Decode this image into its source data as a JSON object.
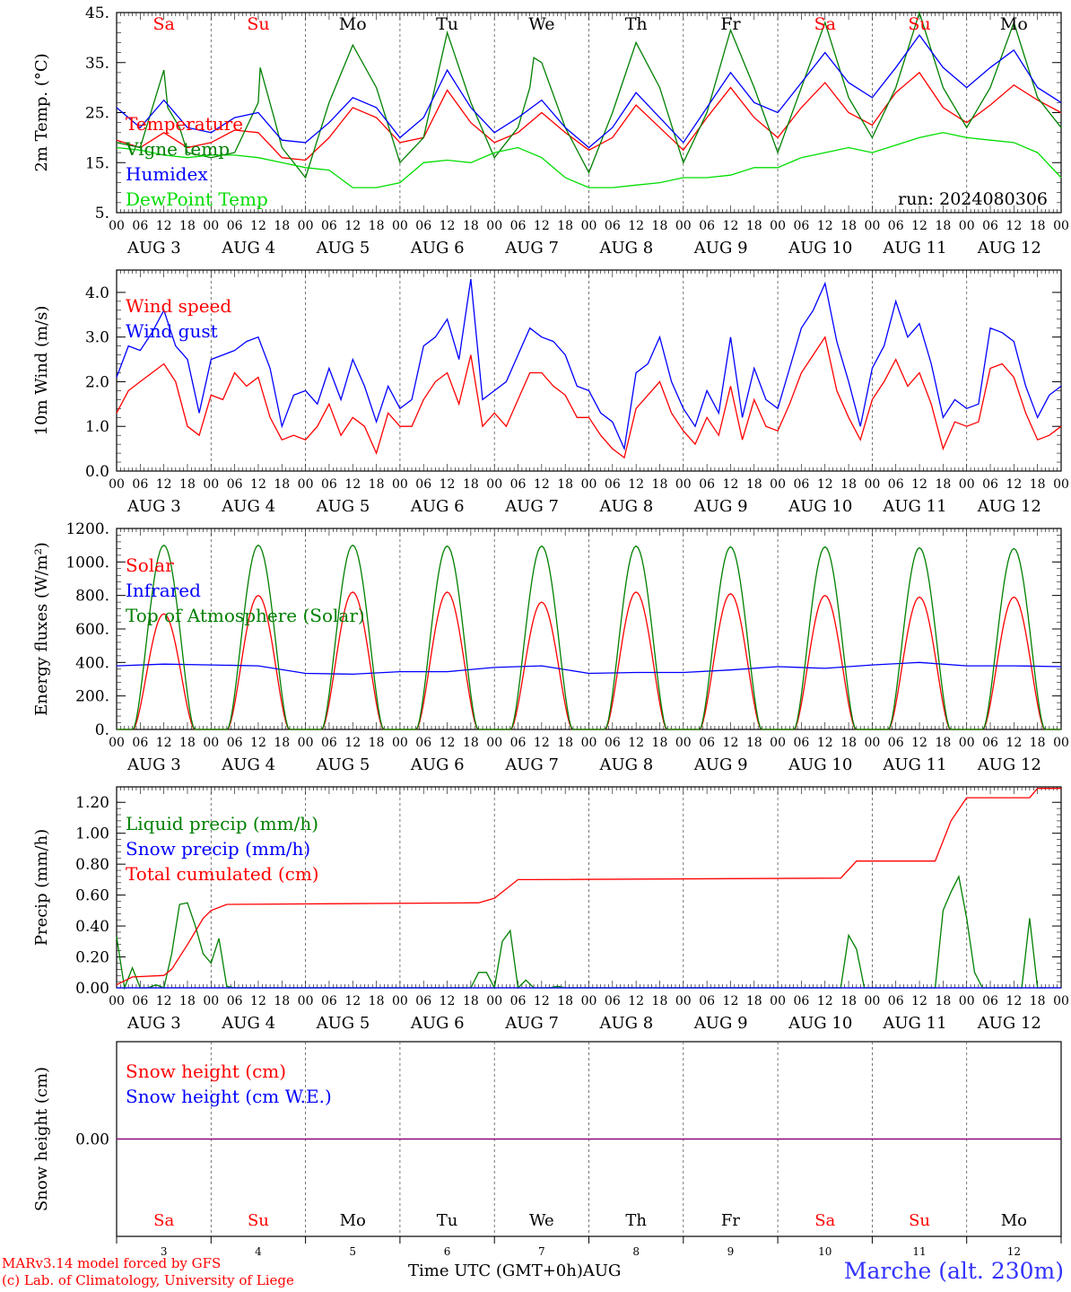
{
  "footer": {
    "credit_line1": "MARv3.14 model forced by GFS",
    "credit_line2": "(c) Lab. of Climatology, University of Liege",
    "time_axis_label": "Time UTC (GMT+0h)AUG",
    "station": "Marche (alt. 230m)"
  },
  "run_label": "run: 2024080306",
  "days": [
    "Sa",
    "Su",
    "Mo",
    "Tu",
    "We",
    "Th",
    "Fr",
    "Sa",
    "Su",
    "Mo"
  ],
  "weekend_flags": [
    true,
    true,
    false,
    false,
    false,
    false,
    false,
    true,
    true,
    false
  ],
  "dates": [
    "AUG  3",
    "AUG  4",
    "AUG  5",
    "AUG  6",
    "AUG  7",
    "AUG  8",
    "AUG  9",
    "AUG 10",
    "AUG 11",
    "AUG 12"
  ],
  "bottom_day_numbers": [
    "3",
    "4",
    "5",
    "6",
    "7",
    "8",
    "9",
    "10",
    "11",
    "12"
  ],
  "hour_ticks": [
    "00",
    "06",
    "12",
    "18"
  ],
  "colors": {
    "red": "#ff0000",
    "green": "#008000",
    "blue": "#0000ff",
    "light_green": "#00dd00",
    "purple": "#7f007f"
  },
  "chart_data": [
    {
      "type": "line",
      "id": "temp",
      "ylabel": "2m Temp. (°C)",
      "ylim": [
        5,
        45
      ],
      "yticks": [
        "5.",
        "15.",
        "25.",
        "35.",
        "45."
      ],
      "x_unit": "hours since AUG 3 00 UTC",
      "series": [
        {
          "name": "Temperature",
          "color": "#ff0000",
          "x": [
            0,
            6,
            12,
            18,
            24,
            30,
            36,
            42,
            48,
            54,
            60,
            66,
            72,
            78,
            84,
            90,
            96,
            102,
            108,
            114,
            120,
            126,
            132,
            138,
            144,
            150,
            156,
            162,
            168,
            174,
            180,
            186,
            192,
            198,
            204,
            210,
            216,
            222,
            228,
            234,
            240
          ],
          "y": [
            19.5,
            18,
            21,
            18,
            19,
            21.5,
            21,
            16,
            15.5,
            20,
            26,
            24,
            19,
            20,
            29.5,
            23,
            19,
            21,
            25,
            21,
            17.5,
            20,
            26.5,
            22,
            17.5,
            24,
            30,
            24,
            20,
            26,
            31,
            25,
            22.5,
            29,
            33,
            26,
            23,
            26.5,
            30.5,
            27.5,
            25
          ]
        },
        {
          "name": "Vigne temp",
          "color": "#008000",
          "x": [
            0,
            6,
            12,
            13,
            16,
            18,
            24,
            30,
            36,
            36.5,
            40,
            42,
            48,
            54,
            60,
            66,
            72,
            78,
            84,
            90,
            96,
            102,
            105,
            106,
            108,
            114,
            120,
            126,
            132,
            138,
            144,
            150,
            156,
            162,
            168,
            174,
            180,
            186,
            192,
            198,
            204,
            210,
            216,
            222,
            228,
            234,
            240
          ],
          "y": [
            19,
            18,
            33.5,
            26,
            22,
            17,
            16,
            17,
            27,
            34,
            24,
            18,
            12,
            27,
            38.5,
            30,
            15,
            20,
            41,
            27,
            16,
            22,
            30,
            36,
            35,
            22,
            13,
            25,
            39,
            30,
            15,
            25,
            41.5,
            30,
            17,
            30,
            43,
            28,
            20,
            30,
            45,
            30,
            22,
            30,
            43,
            28,
            22
          ]
        },
        {
          "name": "Humidex",
          "color": "#0000ff",
          "x": [
            0,
            6,
            12,
            18,
            24,
            30,
            36,
            42,
            48,
            54,
            60,
            66,
            72,
            78,
            84,
            90,
            96,
            102,
            108,
            114,
            120,
            126,
            132,
            138,
            144,
            150,
            156,
            162,
            168,
            174,
            180,
            186,
            192,
            198,
            204,
            210,
            216,
            222,
            228,
            234,
            240
          ],
          "y": [
            26,
            22,
            27.5,
            22,
            21,
            24,
            25,
            19.5,
            19,
            23,
            28,
            26,
            20,
            24,
            33.5,
            26,
            21,
            24,
            27.5,
            22,
            18,
            22,
            29,
            24,
            19,
            26,
            33,
            27,
            25,
            31,
            37,
            31,
            28,
            34,
            40.5,
            34,
            30,
            34,
            37.5,
            30,
            27
          ]
        },
        {
          "name": "DewPoint Temp",
          "color": "#00dd00",
          "x": [
            0,
            6,
            12,
            18,
            24,
            30,
            36,
            42,
            48,
            54,
            60,
            66,
            72,
            78,
            84,
            90,
            96,
            102,
            108,
            114,
            120,
            126,
            132,
            138,
            144,
            150,
            156,
            162,
            168,
            174,
            180,
            186,
            192,
            198,
            204,
            210,
            216,
            222,
            228,
            234,
            240
          ],
          "y": [
            18,
            17.5,
            16.5,
            16,
            16.5,
            16.5,
            16,
            15,
            14,
            13.5,
            10,
            10,
            11,
            15,
            15.5,
            15,
            17,
            18,
            16,
            12,
            10,
            10,
            10.5,
            11,
            12,
            12,
            12.5,
            14,
            14,
            16,
            17,
            18,
            17,
            18.5,
            20,
            21,
            20,
            19.5,
            19,
            17,
            12
          ]
        }
      ]
    },
    {
      "type": "line",
      "id": "wind",
      "ylabel": "10m Wind (m/s)",
      "ylim": [
        0,
        4.5
      ],
      "yticks": [
        "0.0",
        "1.0",
        "2.0",
        "3.0",
        "4.0"
      ],
      "x_unit": "hours since AUG 3 00 UTC",
      "series": [
        {
          "name": "Wind speed",
          "color": "#ff0000",
          "x": [
            0,
            3,
            6,
            9,
            12,
            15,
            18,
            21,
            24,
            27,
            30,
            33,
            36,
            39,
            42,
            45,
            48,
            51,
            54,
            57,
            60,
            63,
            66,
            69,
            72,
            75,
            78,
            81,
            84,
            87,
            90,
            93,
            96,
            99,
            102,
            105,
            108,
            111,
            114,
            117,
            120,
            123,
            126,
            129,
            132,
            135,
            138,
            141,
            144,
            147,
            150,
            153,
            156,
            159,
            162,
            165,
            168,
            171,
            174,
            177,
            180,
            183,
            186,
            189,
            192,
            195,
            198,
            201,
            204,
            207,
            210,
            213,
            216,
            219,
            222,
            225,
            228,
            231,
            234,
            237,
            240
          ],
          "y": [
            1.3,
            1.8,
            2.0,
            2.2,
            2.4,
            2.0,
            1.0,
            0.8,
            1.7,
            1.6,
            2.2,
            1.9,
            2.1,
            1.2,
            0.7,
            0.8,
            0.7,
            1.0,
            1.5,
            0.8,
            1.2,
            1.0,
            0.4,
            1.3,
            1.0,
            1.0,
            1.6,
            2.0,
            2.2,
            1.5,
            2.6,
            1.0,
            1.3,
            1.0,
            1.6,
            2.2,
            2.2,
            1.9,
            1.7,
            1.2,
            1.2,
            0.8,
            0.5,
            0.3,
            1.4,
            1.7,
            2.0,
            1.3,
            0.9,
            0.6,
            1.2,
            0.8,
            1.9,
            0.7,
            1.6,
            1.0,
            0.9,
            1.5,
            2.2,
            2.6,
            3.0,
            1.8,
            1.2,
            0.7,
            1.6,
            2.0,
            2.5,
            1.9,
            2.2,
            1.5,
            0.5,
            1.1,
            1.0,
            1.1,
            2.3,
            2.4,
            2.1,
            1.3,
            0.7,
            0.8,
            1.0
          ]
        },
        {
          "name": "Wind gust",
          "color": "#0000ff",
          "x": [
            0,
            3,
            6,
            9,
            12,
            15,
            18,
            21,
            24,
            27,
            30,
            33,
            36,
            39,
            42,
            45,
            48,
            51,
            54,
            57,
            60,
            63,
            66,
            69,
            72,
            75,
            78,
            81,
            84,
            87,
            90,
            93,
            96,
            99,
            102,
            105,
            108,
            111,
            114,
            117,
            120,
            123,
            126,
            129,
            132,
            135,
            138,
            141,
            144,
            147,
            150,
            153,
            156,
            159,
            162,
            165,
            168,
            171,
            174,
            177,
            180,
            183,
            186,
            189,
            192,
            195,
            198,
            201,
            204,
            207,
            210,
            213,
            216,
            219,
            222,
            225,
            228,
            231,
            234,
            237,
            240
          ],
          "y": [
            2.1,
            2.8,
            2.7,
            3.1,
            3.6,
            2.8,
            2.5,
            1.3,
            2.5,
            2.6,
            2.7,
            2.9,
            3.0,
            2.3,
            1.0,
            1.7,
            1.8,
            1.5,
            2.3,
            1.6,
            2.5,
            1.9,
            1.1,
            1.9,
            1.4,
            1.6,
            2.8,
            3.0,
            3.4,
            2.5,
            4.3,
            1.6,
            1.8,
            2.0,
            2.6,
            3.2,
            3.0,
            2.9,
            2.6,
            1.9,
            1.8,
            1.3,
            1.1,
            0.5,
            2.2,
            2.4,
            3.0,
            2.0,
            1.4,
            1.0,
            1.8,
            1.3,
            3.0,
            1.2,
            2.3,
            1.6,
            1.4,
            2.3,
            3.2,
            3.6,
            4.2,
            2.9,
            2.0,
            1.0,
            2.3,
            2.8,
            3.8,
            3.0,
            3.3,
            2.4,
            1.2,
            1.6,
            1.4,
            1.5,
            3.2,
            3.1,
            2.9,
            1.9,
            1.2,
            1.7,
            1.9
          ]
        }
      ]
    },
    {
      "type": "line",
      "id": "energy",
      "ylabel": "Energy fluxes (W/m²)",
      "ylim": [
        0,
        1200
      ],
      "yticks": [
        "0.",
        "200.",
        "400.",
        "600.",
        "800.",
        "1000.",
        "1200."
      ],
      "x_unit": "hours since AUG 3 00 UTC",
      "series": [
        {
          "name": "Solar",
          "color": "#ff0000",
          "daily_peaks": [
            690,
            800,
            820,
            820,
            760,
            820,
            810,
            800,
            790,
            790
          ],
          "pattern": "diurnal"
        },
        {
          "name": "Infrared",
          "color": "#0000ff",
          "x": [
            0,
            12,
            24,
            36,
            48,
            60,
            72,
            84,
            96,
            108,
            120,
            132,
            144,
            156,
            168,
            180,
            192,
            204,
            216,
            228,
            240
          ],
          "y": [
            380,
            390,
            385,
            380,
            335,
            330,
            345,
            345,
            370,
            380,
            335,
            340,
            340,
            355,
            375,
            365,
            385,
            400,
            380,
            380,
            375
          ]
        },
        {
          "name": "Top of Atmosphere (Solar)",
          "color": "#008000",
          "daily_peaks": [
            1100,
            1100,
            1100,
            1095,
            1095,
            1095,
            1090,
            1090,
            1085,
            1080
          ],
          "pattern": "diurnal"
        }
      ]
    },
    {
      "type": "line",
      "id": "precip",
      "ylabel": "Precip (mm/h)",
      "ylim": [
        0,
        1.3
      ],
      "yticks": [
        "0.00",
        "0.20",
        "0.40",
        "0.60",
        "0.80",
        "1.00",
        "1.20"
      ],
      "x_unit": "hours since AUG 3 00 UTC",
      "series": [
        {
          "name": "Liquid precip (mm/h)",
          "color": "#008000",
          "x": [
            0,
            2,
            4,
            6,
            8,
            10,
            12,
            14,
            16,
            18,
            20,
            22,
            24,
            26,
            28,
            30,
            90,
            92,
            94,
            96,
            98,
            100,
            102,
            104,
            106,
            108,
            110,
            112,
            114,
            116,
            184,
            186,
            188,
            190,
            208,
            210,
            212,
            214,
            216,
            218,
            220,
            230,
            232,
            234,
            236
          ],
          "y": [
            0.33,
            0.0,
            0.13,
            0.0,
            0.0,
            0.02,
            0.0,
            0.22,
            0.54,
            0.55,
            0.4,
            0.22,
            0.16,
            0.32,
            0.01,
            0.0,
            0.0,
            0.1,
            0.1,
            0.0,
            0.3,
            0.37,
            0.0,
            0.05,
            0.0,
            0.0,
            0.0,
            0.01,
            0.0,
            0.0,
            0.0,
            0.34,
            0.25,
            0.0,
            0.0,
            0.5,
            0.62,
            0.72,
            0.45,
            0.1,
            0.0,
            0.0,
            0.45,
            0.0,
            0.0
          ]
        },
        {
          "name": "Snow precip (mm/h)",
          "color": "#0000ff",
          "x": [
            0,
            240
          ],
          "y": [
            0,
            0
          ]
        },
        {
          "name": "Total cumulated (cm)",
          "color": "#ff0000",
          "x": [
            0,
            4,
            12,
            14,
            18,
            22,
            24,
            28,
            92,
            96,
            100,
            102,
            106,
            184,
            188,
            190,
            208,
            212,
            216,
            232,
            234,
            240
          ],
          "y": [
            0.02,
            0.07,
            0.08,
            0.12,
            0.28,
            0.45,
            0.5,
            0.54,
            0.55,
            0.58,
            0.66,
            0.7,
            0.7,
            0.71,
            0.82,
            0.82,
            0.82,
            1.08,
            1.23,
            1.23,
            1.29,
            1.29
          ]
        }
      ]
    },
    {
      "type": "line",
      "id": "snow",
      "ylabel": "Snow height (cm)",
      "ylim": [
        -1,
        1
      ],
      "yticks": [
        "0.00"
      ],
      "x_unit": "hours since AUG 3 00 UTC",
      "series": [
        {
          "name": "Snow height (cm)",
          "color": "#ff0000",
          "x": [
            0,
            240
          ],
          "y": [
            0,
            0
          ]
        },
        {
          "name": "Snow height (cm W.E.)",
          "color": "#0000ff",
          "x": [
            0,
            240
          ],
          "y": [
            0,
            0
          ]
        }
      ]
    }
  ]
}
